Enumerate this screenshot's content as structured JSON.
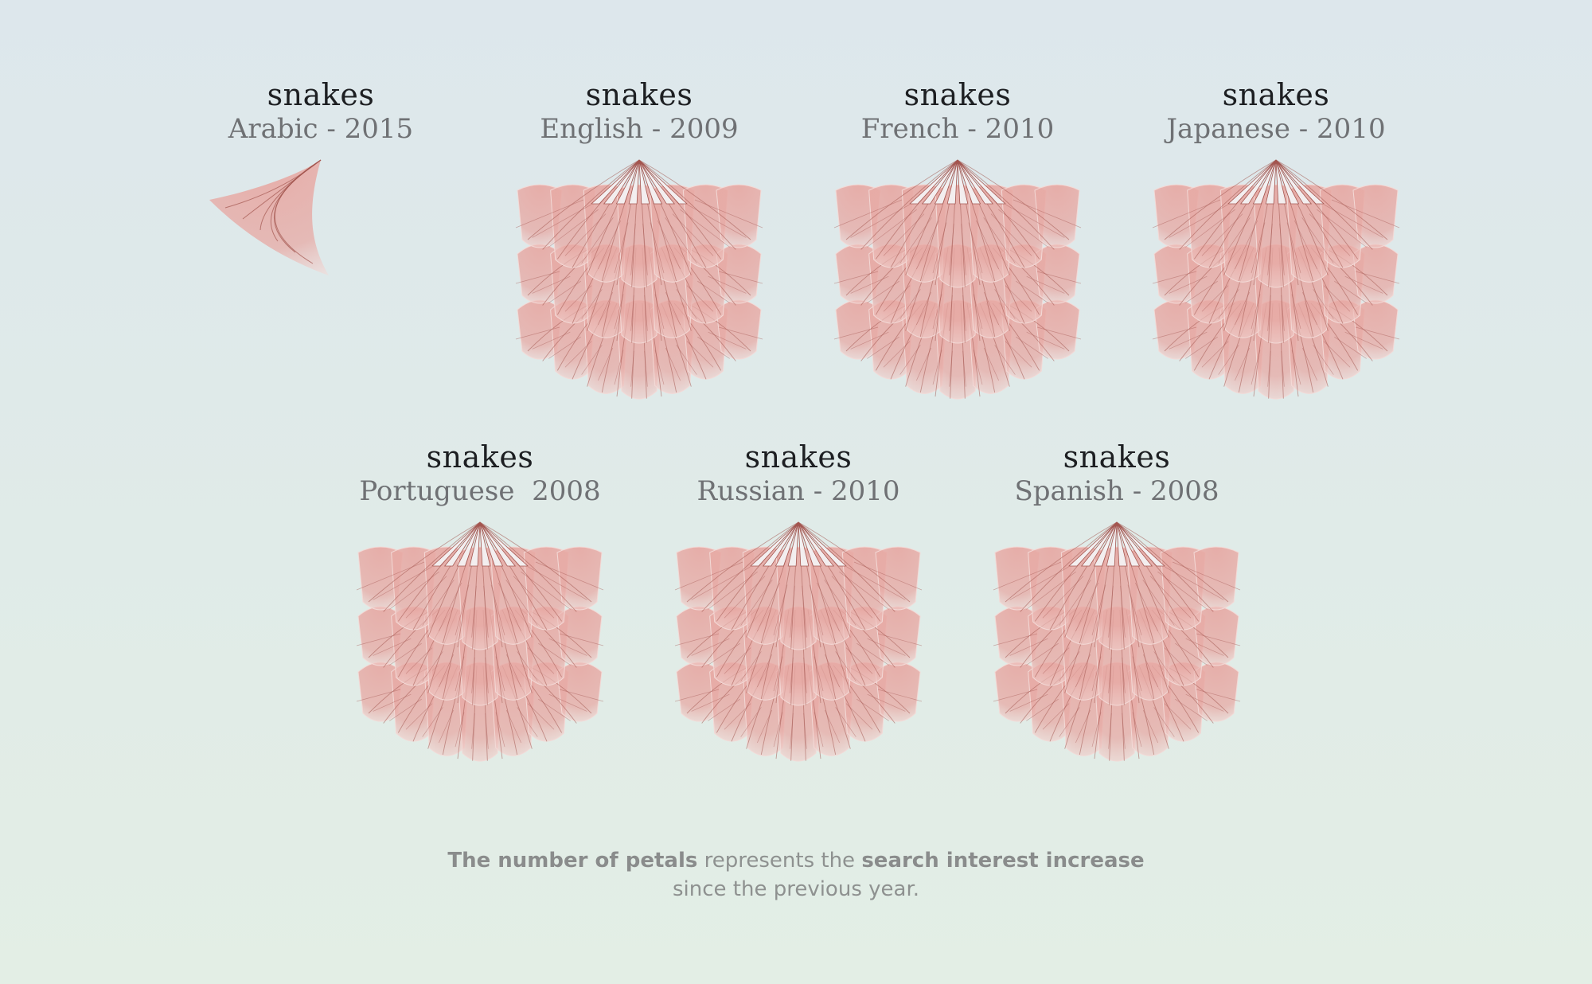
{
  "flowers": [
    {
      "term": "snakes",
      "language": "Arabic - 2015",
      "petal_rings": 0.25
    },
    {
      "term": "snakes",
      "language": "English - 2009",
      "petal_rings": 3
    },
    {
      "term": "snakes",
      "language": "French - 2010",
      "petal_rings": 3
    },
    {
      "term": "snakes",
      "language": "Japanese - 2010",
      "petal_rings": 3
    },
    {
      "term": "snakes",
      "language": "Portuguese  2008",
      "petal_rings": 3
    },
    {
      "term": "snakes",
      "language": "Russian - 2010",
      "petal_rings": 3
    },
    {
      "term": "snakes",
      "language": "Spanish - 2008",
      "petal_rings": 3
    }
  ],
  "caption": {
    "bold_1": "The number of petals",
    "text_1": " represents the ",
    "bold_2": "search interest increase",
    "line_2": "since the previous year."
  },
  "colors": {
    "petal_fill": "#e7aaa5",
    "petal_light": "#f3d9d6",
    "vein": "#a3554f",
    "term_text": "#1d1f22",
    "language_text": "#6f7174",
    "caption_text": "#8e9190"
  }
}
